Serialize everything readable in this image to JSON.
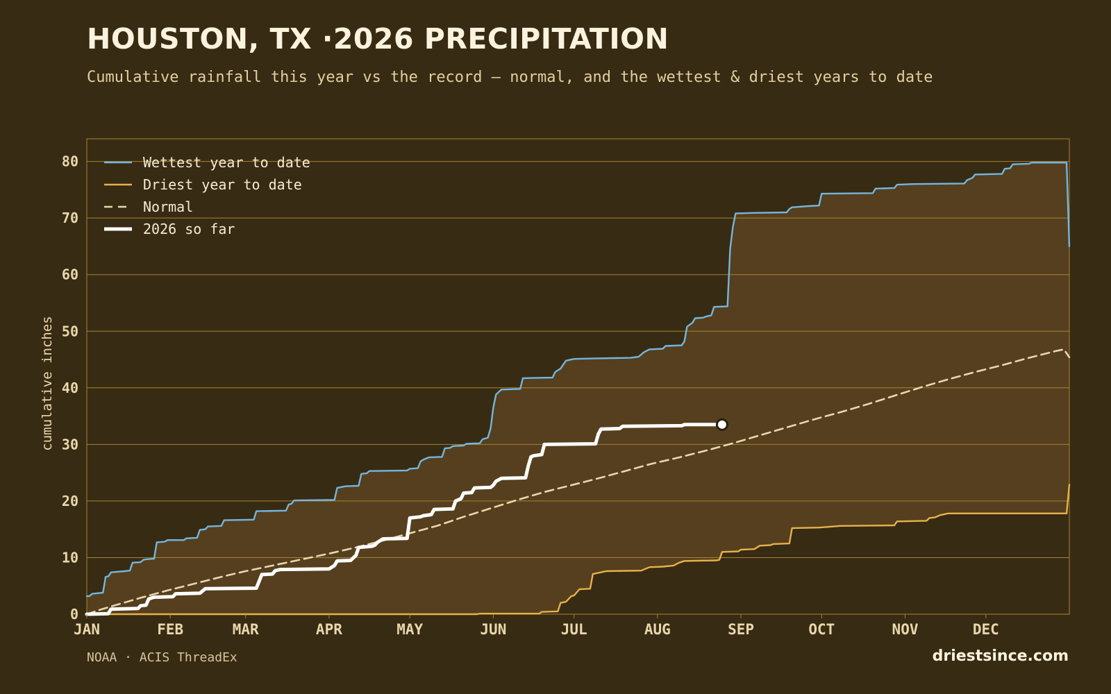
{
  "header": {
    "title": "HOUSTON, TX ·2026 PRECIPITATION",
    "subtitle": "Cumulative rainfall this year vs the record — normal, and the wettest & driest years to date"
  },
  "footer": {
    "source": "NOAA · ACIS ThreadEx",
    "brand": "driestsince.com"
  },
  "colors": {
    "background": "#382b13",
    "band": "#553f1e",
    "grid": "#a88433",
    "wettest": "#74b6de",
    "driest": "#e6b24a",
    "normal": "#e9d7ad",
    "current": "#ffffff",
    "text": "#e9d7ad"
  },
  "chart_data": {
    "type": "line",
    "title": "HOUSTON, TX ·2026 PRECIPITATION",
    "ylabel": "cumulative inches",
    "xlabel": "",
    "xlim": [
      0,
      365
    ],
    "ylim": [
      0,
      84
    ],
    "grid": true,
    "legend_position": "top-left",
    "month_ticks": [
      {
        "label": "JAN",
        "day": 0
      },
      {
        "label": "FEB",
        "day": 31
      },
      {
        "label": "MAR",
        "day": 59
      },
      {
        "label": "APR",
        "day": 90
      },
      {
        "label": "MAY",
        "day": 120
      },
      {
        "label": "JUN",
        "day": 151
      },
      {
        "label": "JUL",
        "day": 181
      },
      {
        "label": "AUG",
        "day": 212
      },
      {
        "label": "SEP",
        "day": 243
      },
      {
        "label": "OCT",
        "day": 273
      },
      {
        "label": "NOV",
        "day": 304
      },
      {
        "label": "DEC",
        "day": 334
      }
    ],
    "y_ticks": [
      0,
      10,
      20,
      30,
      40,
      50,
      60,
      70,
      80
    ],
    "series": [
      {
        "name": "Wettest year to date",
        "style": "wettest",
        "points": [
          [
            0,
            3.2
          ],
          [
            1,
            3.2
          ],
          [
            2,
            3.6
          ],
          [
            6,
            3.8
          ],
          [
            7,
            6.6
          ],
          [
            8,
            6.7
          ],
          [
            9,
            7.4
          ],
          [
            14,
            7.6
          ],
          [
            16,
            7.7
          ],
          [
            17,
            9.1
          ],
          [
            20,
            9.2
          ],
          [
            21,
            9.6
          ],
          [
            22,
            9.7
          ],
          [
            25,
            9.8
          ],
          [
            26,
            12.7
          ],
          [
            29,
            12.8
          ],
          [
            30,
            13.1
          ],
          [
            36,
            13.1
          ],
          [
            37,
            13.4
          ],
          [
            41,
            13.5
          ],
          [
            42,
            14.9
          ],
          [
            44,
            15.0
          ],
          [
            45,
            15.5
          ],
          [
            50,
            15.6
          ],
          [
            51,
            16.6
          ],
          [
            62,
            16.7
          ],
          [
            63,
            18.2
          ],
          [
            74,
            18.3
          ],
          [
            75,
            19.4
          ],
          [
            76,
            19.5
          ],
          [
            77,
            20.1
          ],
          [
            92,
            20.2
          ],
          [
            93,
            22.3
          ],
          [
            96,
            22.6
          ],
          [
            101,
            22.7
          ],
          [
            102,
            24.8
          ],
          [
            104,
            24.9
          ],
          [
            105,
            25.3
          ],
          [
            119,
            25.4
          ],
          [
            120,
            25.7
          ],
          [
            123,
            25.8
          ],
          [
            124,
            27.0
          ],
          [
            125,
            27.3
          ],
          [
            127,
            27.7
          ],
          [
            132,
            27.8
          ],
          [
            133,
            29.3
          ],
          [
            135,
            29.4
          ],
          [
            136,
            29.7
          ],
          [
            140,
            29.8
          ],
          [
            141,
            30.1
          ],
          [
            146,
            30.2
          ],
          [
            147,
            30.9
          ],
          [
            149,
            31.2
          ],
          [
            150,
            32.8
          ],
          [
            151,
            36.5
          ],
          [
            152,
            38.8
          ],
          [
            154,
            39.7
          ],
          [
            161,
            39.8
          ],
          [
            162,
            41.7
          ],
          [
            173,
            41.8
          ],
          [
            174,
            42.8
          ],
          [
            176,
            43.4
          ],
          [
            178,
            44.8
          ],
          [
            181,
            45.1
          ],
          [
            189,
            45.2
          ],
          [
            202,
            45.3
          ],
          [
            205,
            45.5
          ],
          [
            207,
            46.3
          ],
          [
            209,
            46.8
          ],
          [
            214,
            46.9
          ],
          [
            215,
            47.4
          ],
          [
            221,
            47.5
          ],
          [
            222,
            48.2
          ],
          [
            223,
            50.8
          ],
          [
            225,
            51.5
          ],
          [
            226,
            52.3
          ],
          [
            229,
            52.4
          ],
          [
            230,
            52.6
          ],
          [
            232,
            52.8
          ],
          [
            233,
            54.3
          ],
          [
            238,
            54.4
          ],
          [
            239,
            64.5
          ],
          [
            240,
            68.4
          ],
          [
            241,
            70.8
          ],
          [
            247,
            70.9
          ],
          [
            260,
            71.0
          ],
          [
            261,
            71.6
          ],
          [
            262,
            71.9
          ],
          [
            268,
            72.1
          ],
          [
            272,
            72.2
          ],
          [
            273,
            74.3
          ],
          [
            292,
            74.4
          ],
          [
            293,
            75.2
          ],
          [
            300,
            75.3
          ],
          [
            301,
            75.9
          ],
          [
            307,
            76.0
          ],
          [
            326,
            76.1
          ],
          [
            327,
            76.7
          ],
          [
            329,
            77.1
          ],
          [
            330,
            77.7
          ],
          [
            340,
            77.8
          ],
          [
            341,
            78.7
          ],
          [
            343,
            78.8
          ],
          [
            344,
            79.5
          ],
          [
            350,
            79.6
          ],
          [
            351,
            79.8
          ],
          [
            362,
            79.8
          ],
          [
            364,
            79.8
          ],
          [
            365,
            65.0
          ]
        ]
      },
      {
        "name": "Driest year to date",
        "style": "driest",
        "points": [
          [
            0,
            0.0
          ],
          [
            145,
            0.0
          ],
          [
            146,
            0.1
          ],
          [
            168,
            0.1
          ],
          [
            169,
            0.4
          ],
          [
            175,
            0.5
          ],
          [
            176,
            2.0
          ],
          [
            178,
            2.2
          ],
          [
            180,
            3.2
          ],
          [
            181,
            3.3
          ],
          [
            183,
            4.4
          ],
          [
            187,
            4.5
          ],
          [
            188,
            7.1
          ],
          [
            190,
            7.3
          ],
          [
            192,
            7.5
          ],
          [
            193,
            7.6
          ],
          [
            206,
            7.7
          ],
          [
            209,
            8.3
          ],
          [
            214,
            8.4
          ],
          [
            218,
            8.6
          ],
          [
            220,
            9.1
          ],
          [
            222,
            9.4
          ],
          [
            234,
            9.5
          ],
          [
            235,
            9.6
          ],
          [
            236,
            11.0
          ],
          [
            242,
            11.1
          ],
          [
            243,
            11.4
          ],
          [
            248,
            11.5
          ],
          [
            250,
            12.1
          ],
          [
            254,
            12.2
          ],
          [
            255,
            12.4
          ],
          [
            261,
            12.5
          ],
          [
            262,
            15.2
          ],
          [
            272,
            15.3
          ],
          [
            280,
            15.6
          ],
          [
            300,
            15.7
          ],
          [
            301,
            16.4
          ],
          [
            312,
            16.5
          ],
          [
            313,
            17.0
          ],
          [
            315,
            17.1
          ],
          [
            317,
            17.5
          ],
          [
            320,
            17.8
          ],
          [
            364,
            17.8
          ],
          [
            365,
            22.9
          ]
        ]
      },
      {
        "name": "Normal",
        "style": "normal",
        "points": [
          [
            0,
            0.0
          ],
          [
            5,
            0.8
          ],
          [
            10,
            1.5
          ],
          [
            20,
            2.9
          ],
          [
            30,
            4.2
          ],
          [
            40,
            5.4
          ],
          [
            50,
            6.6
          ],
          [
            59,
            7.6
          ],
          [
            70,
            8.7
          ],
          [
            80,
            9.7
          ],
          [
            90,
            10.7
          ],
          [
            100,
            11.8
          ],
          [
            110,
            13.0
          ],
          [
            120,
            14.3
          ],
          [
            130,
            15.6
          ],
          [
            140,
            17.2
          ],
          [
            150,
            18.7
          ],
          [
            160,
            20.2
          ],
          [
            170,
            21.6
          ],
          [
            180,
            22.8
          ],
          [
            190,
            24.0
          ],
          [
            200,
            25.3
          ],
          [
            210,
            26.6
          ],
          [
            220,
            27.7
          ],
          [
            230,
            28.9
          ],
          [
            240,
            30.2
          ],
          [
            250,
            31.6
          ],
          [
            260,
            33.0
          ],
          [
            270,
            34.4
          ],
          [
            280,
            35.7
          ],
          [
            290,
            37.1
          ],
          [
            300,
            38.6
          ],
          [
            310,
            40.1
          ],
          [
            320,
            41.5
          ],
          [
            330,
            42.8
          ],
          [
            340,
            44.0
          ],
          [
            350,
            45.3
          ],
          [
            360,
            46.5
          ],
          [
            363,
            46.8
          ],
          [
            365,
            45.4
          ]
        ]
      },
      {
        "name": "2026 so far",
        "style": "current",
        "points": [
          [
            0,
            0.0
          ],
          [
            8,
            0.1
          ],
          [
            9,
            0.9
          ],
          [
            19,
            1.0
          ],
          [
            20,
            1.5
          ],
          [
            22,
            1.6
          ],
          [
            23,
            2.7
          ],
          [
            25,
            3.0
          ],
          [
            32,
            3.1
          ],
          [
            33,
            3.6
          ],
          [
            42,
            3.7
          ],
          [
            44,
            4.5
          ],
          [
            63,
            4.6
          ],
          [
            65,
            7.0
          ],
          [
            69,
            7.1
          ],
          [
            70,
            7.7
          ],
          [
            72,
            7.9
          ],
          [
            90,
            8.0
          ],
          [
            92,
            8.6
          ],
          [
            93,
            9.4
          ],
          [
            98,
            9.5
          ],
          [
            100,
            10.4
          ],
          [
            101,
            11.8
          ],
          [
            106,
            12.0
          ],
          [
            107,
            12.2
          ],
          [
            108,
            12.7
          ],
          [
            110,
            13.3
          ],
          [
            119,
            13.4
          ],
          [
            120,
            17.0
          ],
          [
            124,
            17.2
          ],
          [
            125,
            17.4
          ],
          [
            128,
            17.6
          ],
          [
            129,
            18.5
          ],
          [
            136,
            18.6
          ],
          [
            137,
            20.0
          ],
          [
            139,
            20.4
          ],
          [
            140,
            21.4
          ],
          [
            143,
            21.5
          ],
          [
            144,
            22.3
          ],
          [
            150,
            22.4
          ],
          [
            151,
            22.8
          ],
          [
            152,
            23.5
          ],
          [
            154,
            24.0
          ],
          [
            163,
            24.1
          ],
          [
            164,
            26.2
          ],
          [
            165,
            27.8
          ],
          [
            166,
            28.0
          ],
          [
            169,
            28.2
          ],
          [
            170,
            30.0
          ],
          [
            189,
            30.1
          ],
          [
            190,
            31.8
          ],
          [
            191,
            32.7
          ],
          [
            198,
            32.8
          ],
          [
            199,
            33.2
          ],
          [
            221,
            33.3
          ],
          [
            222,
            33.5
          ],
          [
            236,
            33.5
          ]
        ]
      }
    ]
  }
}
